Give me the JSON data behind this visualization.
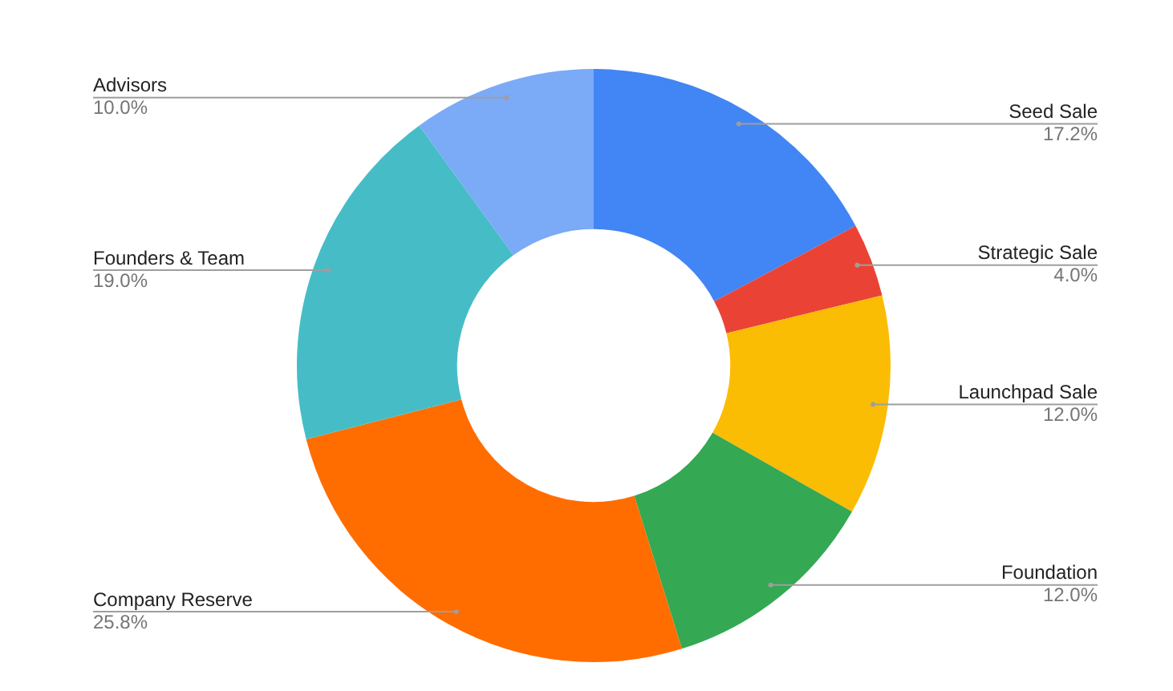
{
  "chart_data": {
    "type": "donut",
    "categories": [
      "Seed Sale",
      "Strategic Sale",
      "Launchpad Sale",
      "Foundation",
      "Company Reserve",
      "Founders & Team",
      "Advisors"
    ],
    "values": [
      17.2,
      4.0,
      12.0,
      12.0,
      25.8,
      19.0,
      10.0
    ],
    "value_labels": [
      "17.2%",
      "4.0%",
      "12.0%",
      "12.0%",
      "25.8%",
      "19.0%",
      "10.0%"
    ],
    "colors": [
      "#4285f4",
      "#ea4335",
      "#fbbc04",
      "#34a853",
      "#ff6d01",
      "#46bdc6",
      "#7baaf7"
    ],
    "legend": false
  }
}
